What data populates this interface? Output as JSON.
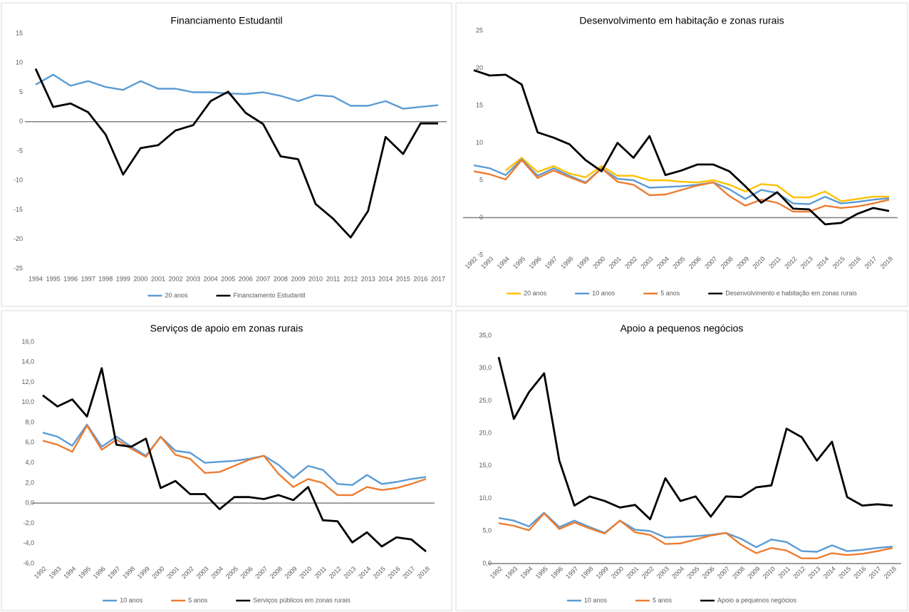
{
  "chart_data": [
    {
      "type": "line",
      "title": "Financiamento Estudantil",
      "categories": [
        "1994",
        "1995",
        "1996",
        "1997",
        "1998",
        "1999",
        "2000",
        "2001",
        "2002",
        "2003",
        "2004",
        "2005",
        "2006",
        "2007",
        "2008",
        "2009",
        "2010",
        "2011",
        "2012",
        "2013",
        "2014",
        "2015",
        "2016",
        "2017"
      ],
      "series": [
        {
          "name": "20 anos",
          "color": "#5b9bd5",
          "values": [
            6.3,
            8.0,
            6.1,
            6.9,
            5.9,
            5.4,
            6.9,
            5.6,
            5.6,
            5.0,
            5.0,
            4.8,
            4.7,
            5.0,
            4.4,
            3.5,
            4.5,
            4.3,
            2.7,
            2.7,
            3.5,
            2.2,
            2.5,
            2.8
          ]
        },
        {
          "name": "Financiamento Estudantil",
          "color": "#000000",
          "values": [
            9.0,
            2.5,
            3.1,
            1.6,
            -2.2,
            -9.0,
            -4.5,
            -4.0,
            -1.5,
            -0.6,
            3.5,
            5.1,
            1.5,
            -0.4,
            -5.9,
            -6.4,
            -14.0,
            -16.5,
            -19.7,
            -15.2,
            -2.6,
            -5.5,
            -0.3,
            -0.3
          ]
        }
      ],
      "ylim": [
        -25,
        15
      ],
      "yticks": [
        -25,
        -20,
        -15,
        -10,
        -5,
        0,
        5,
        10,
        15
      ],
      "grid": false
    },
    {
      "type": "line",
      "title": "Desenvolvimento em habitação e zonas rurais",
      "categories": [
        "1992",
        "1993",
        "1994",
        "1995",
        "1996",
        "1997",
        "1998",
        "1999",
        "2000",
        "2001",
        "2002",
        "2003",
        "2004",
        "2005",
        "2006",
        "2007",
        "2008",
        "2009",
        "2010",
        "2011",
        "2012",
        "2013",
        "2014",
        "2015",
        "2016",
        "2017",
        "2018"
      ],
      "series": [
        {
          "name": "20 anos",
          "color": "#ffc000",
          "values": [
            null,
            null,
            6.3,
            8.0,
            6.1,
            6.9,
            5.9,
            5.4,
            6.9,
            5.6,
            5.6,
            5.0,
            5.0,
            4.8,
            4.7,
            5.0,
            4.4,
            3.5,
            4.5,
            4.3,
            2.7,
            2.7,
            3.5,
            2.2,
            2.5,
            2.8,
            2.8
          ]
        },
        {
          "name": "10 anos",
          "color": "#5b9bd5",
          "values": [
            7.0,
            6.6,
            5.7,
            7.8,
            5.6,
            6.6,
            5.6,
            4.7,
            6.6,
            5.2,
            5.0,
            4.0,
            4.1,
            4.2,
            4.4,
            4.7,
            3.8,
            2.5,
            3.7,
            3.3,
            1.9,
            1.8,
            2.8,
            1.9,
            2.1,
            2.4,
            2.6
          ]
        },
        {
          "name": "5 anos",
          "color": "#ed7d31",
          "values": [
            6.2,
            5.8,
            5.1,
            7.7,
            5.3,
            6.3,
            5.4,
            4.6,
            6.6,
            4.8,
            4.4,
            3.0,
            3.1,
            3.7,
            4.3,
            4.7,
            2.9,
            1.6,
            2.4,
            2.0,
            0.8,
            0.8,
            1.6,
            1.3,
            1.5,
            1.9,
            2.4
          ]
        },
        {
          "name": "Desenvolvimento e habitação em zonas rurais",
          "color": "#000000",
          "values": [
            19.7,
            19.0,
            19.1,
            17.8,
            11.4,
            10.7,
            9.8,
            7.7,
            6.2,
            10.0,
            8.0,
            10.9,
            5.7,
            6.3,
            7.1,
            7.1,
            6.2,
            4.2,
            2.0,
            3.4,
            1.2,
            1.1,
            -0.9,
            -0.7,
            0.5,
            1.3,
            0.9
          ]
        }
      ],
      "ylim": [
        -5,
        25
      ],
      "yticks": [
        -5,
        0,
        5,
        10,
        15,
        20,
        25
      ],
      "grid": false
    },
    {
      "type": "line",
      "title": "Serviços de apoio em zonas rurais",
      "categories": [
        "1992",
        "1993",
        "1994",
        "1995",
        "1996",
        "1997",
        "1998",
        "1999",
        "2000",
        "2001",
        "2002",
        "2003",
        "2004",
        "2005",
        "2006",
        "2007",
        "2008",
        "2009",
        "2010",
        "2011",
        "2012",
        "2013",
        "2014",
        "2015",
        "2016",
        "2017",
        "2018"
      ],
      "series": [
        {
          "name": "10 anos",
          "color": "#5b9bd5",
          "values": [
            7.0,
            6.6,
            5.7,
            7.8,
            5.6,
            6.6,
            5.6,
            4.7,
            6.6,
            5.2,
            5.0,
            4.0,
            4.1,
            4.2,
            4.4,
            4.7,
            3.8,
            2.5,
            3.7,
            3.3,
            1.9,
            1.8,
            2.8,
            1.9,
            2.1,
            2.4,
            2.6
          ]
        },
        {
          "name": "5 anos",
          "color": "#ed7d31",
          "values": [
            6.2,
            5.8,
            5.1,
            7.7,
            5.3,
            6.3,
            5.4,
            4.6,
            6.6,
            4.8,
            4.4,
            3.0,
            3.1,
            3.7,
            4.3,
            4.7,
            2.9,
            1.6,
            2.4,
            2.0,
            0.8,
            0.8,
            1.6,
            1.3,
            1.5,
            1.9,
            2.4
          ]
        },
        {
          "name": "Serviços públicos em zonas rurais",
          "color": "#000000",
          "values": [
            10.7,
            9.6,
            10.3,
            8.6,
            13.4,
            5.8,
            5.6,
            6.4,
            1.5,
            2.2,
            0.9,
            0.9,
            -0.6,
            0.6,
            0.6,
            0.4,
            0.8,
            0.3,
            1.6,
            -1.7,
            -1.8,
            -3.9,
            -2.9,
            -4.3,
            -3.4,
            -3.6,
            -4.8
          ]
        }
      ],
      "ylim": [
        -6,
        16
      ],
      "yticks": [
        {
          "value": -6,
          "label": "-6,0"
        },
        {
          "value": -4,
          "label": "-4,0"
        },
        {
          "value": -2,
          "label": "-2,0"
        },
        {
          "value": 0,
          "label": "0,0"
        },
        {
          "value": 2,
          "label": "2,0"
        },
        {
          "value": 4,
          "label": "4,0"
        },
        {
          "value": 6,
          "label": "6,0"
        },
        {
          "value": 8,
          "label": "8,0"
        },
        {
          "value": 10,
          "label": "10,0"
        },
        {
          "value": 12,
          "label": "12,0"
        },
        {
          "value": 14,
          "label": "14,0"
        },
        {
          "value": 16,
          "label": "16,0"
        }
      ],
      "grid": false
    },
    {
      "type": "line",
      "title": "Apoio a pequenos negócios",
      "categories": [
        "1992",
        "1993",
        "1994",
        "1995",
        "1996",
        "1997",
        "1998",
        "1999",
        "2000",
        "2001",
        "2002",
        "2003",
        "2004",
        "2005",
        "2006",
        "2007",
        "2008",
        "2009",
        "2010",
        "2011",
        "2012",
        "2013",
        "2014",
        "2015",
        "2016",
        "2017",
        "2018"
      ],
      "series": [
        {
          "name": "10 anos",
          "color": "#5b9bd5",
          "values": [
            7.0,
            6.6,
            5.7,
            7.8,
            5.6,
            6.6,
            5.6,
            4.7,
            6.6,
            5.2,
            5.0,
            4.0,
            4.1,
            4.2,
            4.4,
            4.7,
            3.8,
            2.5,
            3.7,
            3.3,
            1.9,
            1.8,
            2.8,
            1.9,
            2.1,
            2.4,
            2.6
          ]
        },
        {
          "name": "5 anos",
          "color": "#ed7d31",
          "values": [
            6.2,
            5.8,
            5.1,
            7.7,
            5.3,
            6.3,
            5.4,
            4.6,
            6.6,
            4.8,
            4.4,
            3.0,
            3.1,
            3.7,
            4.3,
            4.7,
            2.9,
            1.6,
            2.4,
            2.0,
            0.8,
            0.8,
            1.6,
            1.3,
            1.5,
            1.9,
            2.4
          ]
        },
        {
          "name": "Apoio a pequenos negócios",
          "color": "#000000",
          "values": [
            31.7,
            22.2,
            26.3,
            29.2,
            15.8,
            8.9,
            10.3,
            9.6,
            8.6,
            9.0,
            6.8,
            13.1,
            9.6,
            10.3,
            7.2,
            10.3,
            10.2,
            11.7,
            12.0,
            20.7,
            19.4,
            15.8,
            18.7,
            10.2,
            8.9,
            9.1,
            8.9
          ]
        }
      ],
      "ylim": [
        0,
        35
      ],
      "yticks": [
        {
          "value": 0,
          "label": "0,0"
        },
        {
          "value": 5,
          "label": "5,0"
        },
        {
          "value": 10,
          "label": "10,0"
        },
        {
          "value": 15,
          "label": "15,0"
        },
        {
          "value": 20,
          "label": "20,0"
        },
        {
          "value": 25,
          "label": "25,0"
        },
        {
          "value": 30,
          "label": "30,0"
        },
        {
          "value": 35,
          "label": "35,0"
        }
      ],
      "grid": false
    }
  ]
}
